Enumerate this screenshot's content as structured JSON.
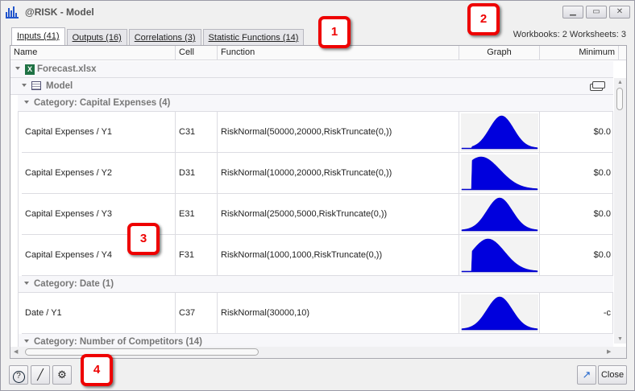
{
  "window": {
    "title": "@RISK - Model"
  },
  "tabs": [
    {
      "label": "Inputs (41)",
      "active": true
    },
    {
      "label": "Outputs (16)"
    },
    {
      "label": "Correlations (3)"
    },
    {
      "label": "Statistic Functions (14)"
    }
  ],
  "counts": "Workbooks: 2  Worksheets: 3",
  "columns": [
    "Name",
    "Cell",
    "Function",
    "Graph",
    "Minimum"
  ],
  "tree": {
    "workbook": "Forecast.xlsx",
    "worksheet": "Model"
  },
  "categories": [
    "Category: Capital Expenses (4)",
    "Category: Date (1)",
    "Category: Number of Competitors (14)"
  ],
  "rows": [
    {
      "name": "Capital Expenses / Y1",
      "cell": "C31",
      "function": "RiskNormal(50000,20000,RiskTruncate(0,))",
      "minimum": "$0.0"
    },
    {
      "name": "Capital Expenses / Y2",
      "cell": "D31",
      "function": "RiskNormal(10000,20000,RiskTruncate(0,))",
      "minimum": "$0.0"
    },
    {
      "name": "Capital Expenses / Y3",
      "cell": "E31",
      "function": "RiskNormal(25000,5000,RiskTruncate(0,))",
      "minimum": "$0.0"
    },
    {
      "name": "Capital Expenses / Y4",
      "cell": "F31",
      "function": "RiskNormal(1000,1000,RiskTruncate(0,))",
      "minimum": "$0.0"
    },
    {
      "name": "Date / Y1",
      "cell": "C37",
      "function": "RiskNormal(30000,10)",
      "minimum": "-c"
    }
  ],
  "badges": [
    "1",
    "2",
    "3",
    "4"
  ],
  "footer": {
    "close": "Close"
  },
  "colors": {
    "graph_fill": "#0000dd",
    "badge": "#ee0000"
  }
}
